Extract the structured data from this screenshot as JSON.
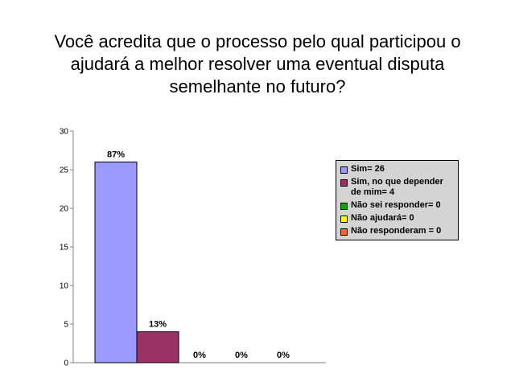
{
  "title_lines": [
    "Você acredita que o processo pelo qual participou o",
    "ajudará a melhor resolver uma eventual disputa",
    "semelhante no futuro?"
  ],
  "chart_data": {
    "type": "bar",
    "title": "Você acredita que o processo pelo qual participou o ajudará a melhor resolver uma eventual disputa semelhante no futuro?",
    "categories": [
      "Sim= 26",
      "Sim, no que depender de mim= 4",
      "Não sei responder= 0",
      "Não ajudará= 0",
      "Não responderam = 0"
    ],
    "values": [
      26,
      4,
      0,
      0,
      0
    ],
    "data_labels": [
      "87%",
      "13%",
      "0%",
      "0%",
      "0%"
    ],
    "colors": [
      "#9999ff",
      "#993366",
      "#00aa00",
      "#ffff00",
      "#ff6633"
    ],
    "ylim": [
      0,
      30
    ],
    "yticks": [
      0,
      5,
      10,
      15,
      20,
      25,
      30
    ],
    "grid": false,
    "legend_position": "right"
  }
}
